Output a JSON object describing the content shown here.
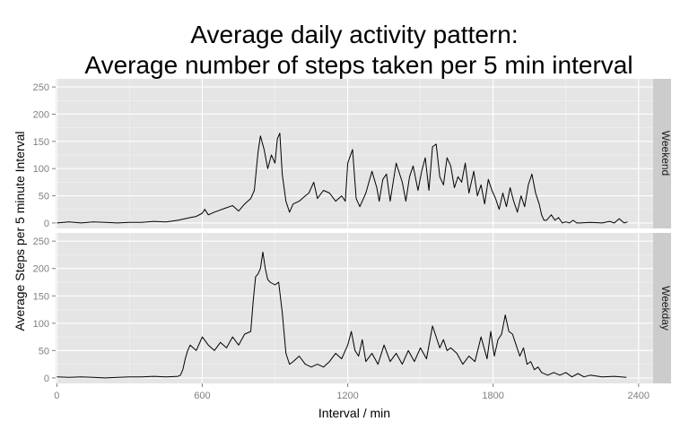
{
  "chart_data": {
    "type": "line",
    "title_lines": [
      "Average daily activity pattern:",
      "Average number of steps taken  per 5 min interval"
    ],
    "xlabel": "Interval / min",
    "ylabel": "Average Steps per 5 minute Interval",
    "xlim": [
      0,
      2400
    ],
    "ylim": [
      0,
      260
    ],
    "x_ticks": [
      0,
      600,
      1200,
      1800,
      2400
    ],
    "y_ticks": [
      0,
      50,
      100,
      150,
      200,
      250
    ],
    "grid": true,
    "facets": [
      "Weekend",
      "Weekday"
    ],
    "series": [
      {
        "name": "Weekend",
        "x": [
          0,
          50,
          100,
          150,
          200,
          250,
          300,
          350,
          400,
          450,
          500,
          550,
          575,
          600,
          610,
          625,
          650,
          700,
          725,
          750,
          775,
          800,
          815,
          830,
          840,
          855,
          870,
          885,
          900,
          910,
          920,
          930,
          945,
          960,
          975,
          1000,
          1025,
          1040,
          1060,
          1075,
          1100,
          1125,
          1150,
          1175,
          1190,
          1200,
          1220,
          1235,
          1250,
          1275,
          1300,
          1320,
          1330,
          1345,
          1360,
          1375,
          1400,
          1425,
          1440,
          1455,
          1470,
          1490,
          1505,
          1520,
          1535,
          1550,
          1565,
          1580,
          1595,
          1610,
          1625,
          1640,
          1655,
          1670,
          1685,
          1700,
          1720,
          1735,
          1750,
          1765,
          1780,
          1795,
          1810,
          1825,
          1840,
          1855,
          1870,
          1885,
          1900,
          1915,
          1930,
          1945,
          1960,
          1975,
          1990,
          2000,
          2010,
          2020,
          2030,
          2040,
          2055,
          2070,
          2085,
          2100,
          2115,
          2130,
          2145,
          2160,
          2200,
          2250,
          2280,
          2300,
          2320,
          2340,
          2355
        ],
        "y": [
          0,
          2,
          0,
          2,
          1,
          0,
          1,
          1,
          3,
          2,
          5,
          10,
          12,
          18,
          25,
          15,
          20,
          28,
          32,
          22,
          35,
          45,
          60,
          130,
          160,
          135,
          100,
          125,
          110,
          155,
          165,
          90,
          40,
          20,
          35,
          40,
          50,
          55,
          75,
          45,
          60,
          55,
          40,
          50,
          40,
          110,
          135,
          45,
          30,
          55,
          95,
          65,
          40,
          80,
          90,
          40,
          110,
          75,
          40,
          85,
          105,
          60,
          95,
          120,
          60,
          140,
          145,
          85,
          70,
          120,
          105,
          65,
          85,
          75,
          110,
          55,
          95,
          50,
          70,
          35,
          80,
          60,
          45,
          25,
          55,
          30,
          65,
          40,
          20,
          50,
          30,
          70,
          90,
          55,
          35,
          15,
          5,
          5,
          10,
          15,
          5,
          10,
          0,
          2,
          0,
          5,
          0,
          0,
          1,
          0,
          3,
          0,
          8,
          0,
          2
        ]
      },
      {
        "name": "Weekday",
        "x": [
          0,
          50,
          100,
          150,
          200,
          250,
          300,
          350,
          400,
          450,
          500,
          510,
          520,
          530,
          540,
          550,
          575,
          600,
          625,
          650,
          675,
          700,
          725,
          750,
          775,
          800,
          810,
          820,
          830,
          840,
          850,
          860,
          870,
          880,
          900,
          915,
          930,
          945,
          960,
          975,
          1000,
          1025,
          1050,
          1075,
          1100,
          1125,
          1150,
          1175,
          1200,
          1215,
          1230,
          1245,
          1260,
          1275,
          1300,
          1325,
          1350,
          1375,
          1400,
          1425,
          1450,
          1475,
          1500,
          1525,
          1550,
          1565,
          1580,
          1595,
          1610,
          1625,
          1650,
          1675,
          1700,
          1725,
          1750,
          1775,
          1790,
          1805,
          1820,
          1835,
          1850,
          1865,
          1880,
          1895,
          1910,
          1925,
          1940,
          1955,
          1970,
          1985,
          2000,
          2025,
          2050,
          2075,
          2100,
          2125,
          2150,
          2175,
          2200,
          2250,
          2300,
          2350
        ],
        "y": [
          2,
          1,
          2,
          1,
          0,
          1,
          2,
          2,
          3,
          2,
          3,
          5,
          15,
          35,
          50,
          60,
          50,
          75,
          60,
          50,
          65,
          55,
          75,
          60,
          80,
          85,
          140,
          185,
          190,
          200,
          230,
          200,
          180,
          175,
          170,
          175,
          120,
          45,
          25,
          30,
          40,
          25,
          20,
          25,
          20,
          30,
          45,
          35,
          60,
          85,
          50,
          40,
          70,
          30,
          45,
          25,
          60,
          30,
          45,
          25,
          50,
          30,
          55,
          35,
          95,
          75,
          55,
          70,
          50,
          55,
          45,
          25,
          40,
          30,
          75,
          35,
          85,
          40,
          70,
          80,
          115,
          85,
          80,
          60,
          40,
          55,
          25,
          30,
          15,
          20,
          10,
          5,
          10,
          5,
          10,
          2,
          8,
          2,
          5,
          2,
          3,
          1
        ]
      }
    ]
  }
}
